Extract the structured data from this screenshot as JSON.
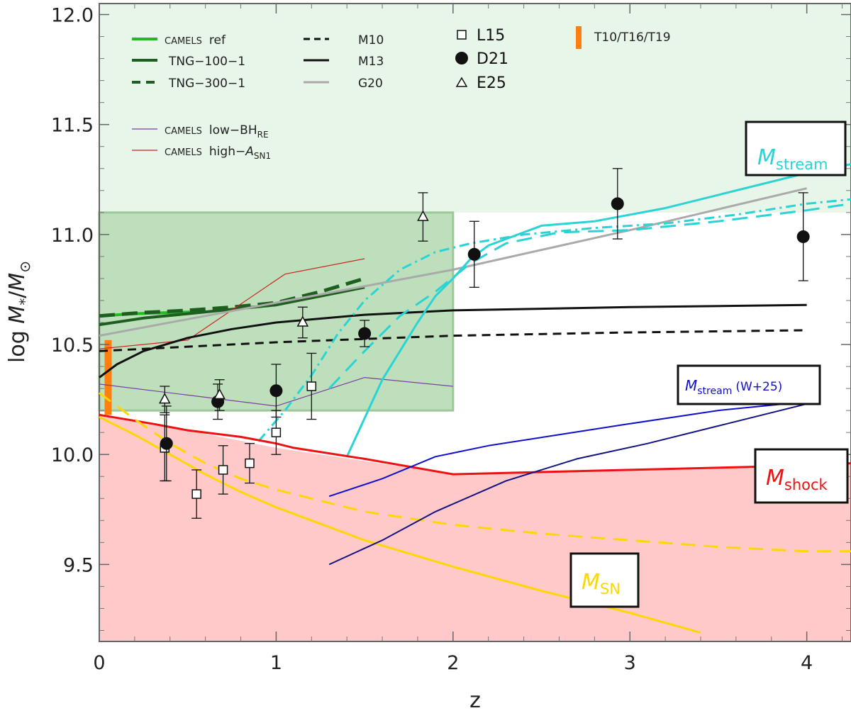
{
  "chart_data": {
    "type": "line",
    "xlabel": "z",
    "ylabel_main": "log ",
    "ylabel_m": "M",
    "ylabel_sub_star": "*",
    "ylabel_slash": "/",
    "ylabel_msun": "M",
    "ylabel_sun_sub": "⊙",
    "xlim": [
      0,
      4.25
    ],
    "ylim": [
      9.15,
      12.05
    ],
    "xticks": [
      0,
      1,
      2,
      3,
      4
    ],
    "xtick_labels": [
      "0",
      "1",
      "2",
      "3",
      "4"
    ],
    "yticks": [
      9.5,
      10.0,
      10.5,
      11.0,
      11.5,
      12.0
    ],
    "ytick_labels": [
      "9.5",
      "10.0",
      "10.5",
      "11.0",
      "11.5",
      "12.0"
    ],
    "regions": [
      {
        "name": "stream-region",
        "x": [
          0,
          4.25
        ],
        "y": [
          11.1,
          12.05
        ],
        "color": "#e8f5e9"
      },
      {
        "name": "camels-box",
        "x": [
          0,
          2
        ],
        "y": [
          10.2,
          11.1
        ],
        "color": "#b7dbb4"
      },
      {
        "name": "sn-region",
        "color": "#ffc9c9",
        "x": [
          0,
          0.3,
          0.5,
          1,
          1.5,
          2,
          3,
          4,
          4.25
        ],
        "y": [
          10.18,
          10.14,
          10.11,
          10.03,
          9.97,
          9.91,
          9.93,
          9.95,
          9.96
        ]
      }
    ],
    "series": [
      {
        "name": "CAMELS ref",
        "color": "#22bb22",
        "width": 4,
        "dash": "",
        "x": [
          0,
          0.2,
          0.4,
          0.6
        ],
        "y": [
          10.63,
          10.64,
          10.645,
          10.65
        ]
      },
      {
        "name": "TNG-100-1",
        "color": "#1e5e1e",
        "width": 4,
        "dash": "",
        "x": [
          0,
          0.25,
          0.5,
          0.75,
          1,
          1.25,
          1.5
        ],
        "y": [
          10.59,
          10.62,
          10.64,
          10.66,
          10.68,
          10.72,
          10.76
        ]
      },
      {
        "name": "TNG-300-1",
        "color": "#1e5e1e",
        "width": 5,
        "dash": "22 10",
        "x": [
          0,
          0.25,
          0.5,
          0.75,
          1,
          1.25,
          1.5
        ],
        "y": [
          10.63,
          10.645,
          10.655,
          10.67,
          10.69,
          10.74,
          10.8
        ]
      },
      {
        "name": "low-BH",
        "color": "#7b3fa0",
        "width": 1.2,
        "dash": "",
        "x": [
          0,
          0.5,
          1,
          1.5,
          2
        ],
        "y": [
          10.32,
          10.27,
          10.22,
          10.35,
          10.31
        ]
      },
      {
        "name": "high-A",
        "color": "#cc2222",
        "width": 1.2,
        "dash": "",
        "x": [
          0,
          0.5,
          1.05,
          1.5
        ],
        "y": [
          10.48,
          10.52,
          10.82,
          10.89
        ]
      },
      {
        "name": "M10",
        "color": "#111111",
        "width": 3,
        "dash": "12 8",
        "x": [
          0,
          1,
          2,
          3,
          4
        ],
        "y": [
          10.47,
          10.51,
          10.54,
          10.555,
          10.565
        ]
      },
      {
        "name": "M13",
        "color": "#111111",
        "width": 3,
        "dash": "",
        "x": [
          0,
          0.1,
          0.25,
          0.5,
          0.75,
          1,
          1.5,
          2,
          3,
          4
        ],
        "y": [
          10.35,
          10.41,
          10.47,
          10.53,
          10.57,
          10.6,
          10.635,
          10.655,
          10.67,
          10.68
        ]
      },
      {
        "name": "G20",
        "color": "#aaaaaa",
        "width": 3,
        "dash": "",
        "x": [
          0,
          1,
          2,
          3,
          4
        ],
        "y": [
          10.54,
          10.69,
          10.84,
          11.02,
          11.21
        ]
      },
      {
        "name": "M_stream solid",
        "color": "#2ad4d4",
        "width": 3,
        "dash": "",
        "x": [
          1.4,
          1.6,
          1.8,
          1.9,
          2.0,
          2.1,
          2.2,
          2.3,
          2.5,
          2.8,
          3.2,
          4.0,
          4.25
        ],
        "y": [
          9.99,
          10.34,
          10.6,
          10.72,
          10.8,
          10.89,
          10.95,
          10.98,
          11.04,
          11.06,
          11.12,
          11.28,
          11.32
        ]
      },
      {
        "name": "M_stream dashed",
        "color": "#2ad4d4",
        "width": 3,
        "dash": "22 12",
        "x": [
          1.3,
          1.5,
          1.7,
          1.9,
          2.1,
          2.3,
          2.6,
          3,
          3.5,
          4,
          4.25
        ],
        "y": [
          10.3,
          10.47,
          10.63,
          10.74,
          10.87,
          10.96,
          11.01,
          11.02,
          11.06,
          11.11,
          11.14
        ]
      },
      {
        "name": "M_stream dotdash",
        "color": "#2ad4d4",
        "width": 3,
        "dash": "14 6 3 6",
        "x": [
          0.9,
          1.05,
          1.2,
          1.35,
          1.5,
          1.7,
          1.9,
          2.1,
          2.4,
          2.8,
          3.2,
          3.6,
          4,
          4.25
        ],
        "y": [
          10.06,
          10.2,
          10.36,
          10.55,
          10.7,
          10.84,
          10.92,
          10.96,
          11.0,
          11.03,
          11.05,
          11.09,
          11.14,
          11.16
        ]
      },
      {
        "name": "M_shock",
        "color": "#ee1111",
        "width": 3,
        "dash": "",
        "x": [
          0,
          0.3,
          0.5,
          0.8,
          1,
          1.1,
          1.5,
          2,
          3,
          4,
          4.25
        ],
        "y": [
          10.18,
          10.14,
          10.11,
          10.08,
          10.05,
          10.03,
          9.98,
          9.91,
          9.93,
          9.95,
          9.96
        ]
      },
      {
        "name": "M_SN solid",
        "color": "#ffd700",
        "width": 3,
        "dash": "",
        "x": [
          0,
          0.2,
          0.4,
          0.6,
          0.8,
          1,
          1.5,
          2,
          2.5,
          3,
          3.4
        ],
        "y": [
          10.17,
          10.09,
          10.0,
          9.91,
          9.83,
          9.76,
          9.61,
          9.49,
          9.38,
          9.28,
          9.19
        ]
      },
      {
        "name": "M_SN dashed",
        "color": "#ffd700",
        "width": 3,
        "dash": "20 12",
        "x": [
          0,
          0.2,
          0.4,
          0.6,
          0.8,
          1,
          1.5,
          2,
          2.5,
          3,
          3.5,
          4,
          4.25
        ],
        "y": [
          10.28,
          10.16,
          10.05,
          9.96,
          9.89,
          9.84,
          9.74,
          9.68,
          9.64,
          9.61,
          9.58,
          9.56,
          9.56
        ]
      },
      {
        "name": "M_stream W+25 upper",
        "color": "#1010cc",
        "width": 2,
        "dash": "",
        "x": [
          1.3,
          1.6,
          1.9,
          2.2,
          2.6,
          3.0,
          3.5,
          4.0
        ],
        "y": [
          9.81,
          9.89,
          9.99,
          10.04,
          10.09,
          10.14,
          10.2,
          10.24
        ]
      },
      {
        "name": "M_stream W+25 lower",
        "color": "#121280",
        "width": 2,
        "dash": "",
        "x": [
          1.3,
          1.6,
          1.9,
          2.3,
          2.7,
          3.1,
          3.5,
          4.05
        ],
        "y": [
          9.5,
          9.61,
          9.74,
          9.88,
          9.98,
          10.05,
          10.13,
          10.24
        ]
      }
    ],
    "points": [
      {
        "name": "L15",
        "marker": "square",
        "x": [
          0.37,
          0.55,
          0.7,
          0.85,
          1.0,
          1.2
        ],
        "y": [
          10.03,
          9.82,
          9.93,
          9.96,
          10.1,
          10.31
        ],
        "err": [
          0.15,
          0.11,
          0.11,
          0.09,
          0.1,
          0.15
        ]
      },
      {
        "name": "D21",
        "marker": "circle",
        "x": [
          0.38,
          0.67,
          1.0,
          1.5,
          2.12,
          2.93,
          3.98
        ],
        "y": [
          10.05,
          10.24,
          10.29,
          10.55,
          10.91,
          11.14,
          10.99
        ],
        "err": [
          0.17,
          0.08,
          0.12,
          0.06,
          0.15,
          0.16,
          0.2
        ]
      },
      {
        "name": "E25",
        "marker": "triangle",
        "x": [
          0.37,
          0.68,
          1.15,
          1.83
        ],
        "y": [
          10.25,
          10.27,
          10.6,
          11.08
        ],
        "err": [
          0.06,
          0.07,
          0.07,
          0.11
        ]
      }
    ],
    "orange_bar": {
      "x": 0.05,
      "y": [
        10.18,
        10.52
      ]
    },
    "legend": {
      "camels_prefix": "CAMELS",
      "ref": "ref",
      "tng100": "TNG−100−1",
      "tng300": "TNG−300−1",
      "lowbh": "low−BH",
      "lowbh_sub": "RE",
      "higha": "high−",
      "higha_var": "A",
      "higha_sub": "SN1",
      "m10": "M10",
      "m13": "M13",
      "g20": "G20",
      "l15": "L15",
      "d21": "D21",
      "e25": "E25",
      "t10": "T10/T16/T19"
    },
    "boxes": {
      "stream": {
        "main": "M",
        "sub": "stream"
      },
      "stream_w": {
        "main": "M",
        "sub": "stream",
        "suffix": "(W+25)"
      },
      "shock": {
        "main": "M",
        "sub": "shock"
      },
      "sn": {
        "main": "M",
        "sub": "SN"
      }
    }
  }
}
